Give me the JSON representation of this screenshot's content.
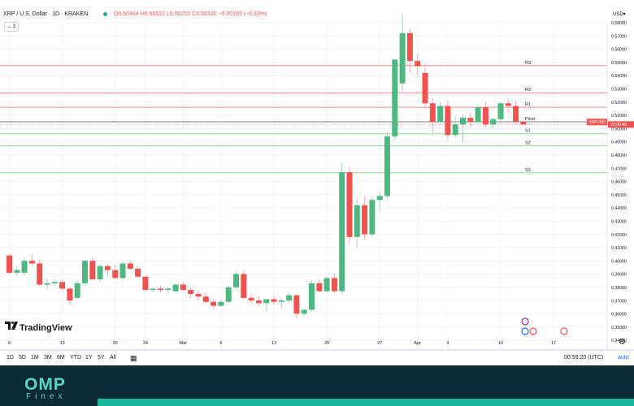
{
  "header": {
    "title": "XRP / U.S. Dollar · 1D · KRAKEN",
    "ohlc": "O0.50484 H0.50522 L0.50253 C0.50330 −0.00165 (−0.33%)",
    "indicator_count": "3",
    "currency": "USD▾"
  },
  "footer": {
    "tv_label": "TradingView",
    "clock": "00:59:20 (UTC)",
    "auto_label": "auto",
    "ranges": [
      "1D",
      "5D",
      "1M",
      "3M",
      "6M",
      "YTD",
      "1Y",
      "5Y",
      "All"
    ],
    "brand_top": "OMP",
    "brand_bottom": "Finex"
  },
  "colors": {
    "up": "#4fb881",
    "down": "#ef5350",
    "resistance": "#f28b8b",
    "support": "#8fdc8f",
    "pivot": "#787b86",
    "brand": "#5bd6c6"
  },
  "chart_data": {
    "type": "candlestick",
    "symbol_label": "XRPUSD",
    "last_price_label": "23:00:40",
    "ylim": [
      0.336,
      0.589
    ],
    "price_ticks": [
      "0.58000",
      "0.57000",
      "0.56000",
      "0.55000",
      "0.54000",
      "0.53000",
      "0.52000",
      "0.51000",
      "0.50000",
      "0.49000",
      "0.48000",
      "0.47000",
      "0.46000",
      "0.45000",
      "0.44000",
      "0.43000",
      "0.42000",
      "0.41000",
      "0.40000",
      "0.39000",
      "0.38000",
      "0.37000",
      "0.36000",
      "0.35000",
      "0.34000"
    ],
    "date_ticks": [
      {
        "label": "6",
        "i": 0
      },
      {
        "label": "13",
        "i": 7
      },
      {
        "label": "20",
        "i": 14
      },
      {
        "label": "24",
        "i": 18
      },
      {
        "label": "Mar",
        "i": 23
      },
      {
        "label": "6",
        "i": 28
      },
      {
        "label": "13",
        "i": 35
      },
      {
        "label": "20",
        "i": 42
      },
      {
        "label": "27",
        "i": 49
      },
      {
        "label": "Apr",
        "i": 54
      },
      {
        "label": "3",
        "i": 58
      },
      {
        "label": "10",
        "i": 65
      },
      {
        "label": "17",
        "i": 72
      }
    ],
    "pivots": [
      {
        "label": "R3",
        "value": 0.5475,
        "kind": "resistance"
      },
      {
        "label": "R2",
        "value": 0.527,
        "kind": "resistance"
      },
      {
        "label": "R1",
        "value": 0.516,
        "kind": "resistance"
      },
      {
        "label": "Pivot",
        "value": 0.505,
        "kind": "pivot"
      },
      {
        "label": "S1",
        "value": 0.496,
        "kind": "support"
      },
      {
        "label": "S2",
        "value": 0.487,
        "kind": "support"
      },
      {
        "label": "S3",
        "value": 0.4665,
        "kind": "support"
      }
    ],
    "candles": [
      {
        "o": 0.404,
        "h": 0.405,
        "l": 0.39,
        "c": 0.391
      },
      {
        "o": 0.391,
        "h": 0.396,
        "l": 0.389,
        "c": 0.393
      },
      {
        "o": 0.391,
        "h": 0.402,
        "l": 0.389,
        "c": 0.4
      },
      {
        "o": 0.4,
        "h": 0.405,
        "l": 0.396,
        "c": 0.398
      },
      {
        "o": 0.398,
        "h": 0.401,
        "l": 0.381,
        "c": 0.382
      },
      {
        "o": 0.382,
        "h": 0.387,
        "l": 0.378,
        "c": 0.383
      },
      {
        "o": 0.383,
        "h": 0.386,
        "l": 0.381,
        "c": 0.384
      },
      {
        "o": 0.384,
        "h": 0.386,
        "l": 0.378,
        "c": 0.379
      },
      {
        "o": 0.379,
        "h": 0.38,
        "l": 0.367,
        "c": 0.37
      },
      {
        "o": 0.372,
        "h": 0.385,
        "l": 0.371,
        "c": 0.383
      },
      {
        "o": 0.383,
        "h": 0.401,
        "l": 0.381,
        "c": 0.4
      },
      {
        "o": 0.4,
        "h": 0.402,
        "l": 0.385,
        "c": 0.386
      },
      {
        "o": 0.386,
        "h": 0.398,
        "l": 0.384,
        "c": 0.396
      },
      {
        "o": 0.396,
        "h": 0.398,
        "l": 0.389,
        "c": 0.393
      },
      {
        "o": 0.393,
        "h": 0.397,
        "l": 0.386,
        "c": 0.387
      },
      {
        "o": 0.387,
        "h": 0.399,
        "l": 0.385,
        "c": 0.398
      },
      {
        "o": 0.398,
        "h": 0.4,
        "l": 0.393,
        "c": 0.394
      },
      {
        "o": 0.394,
        "h": 0.396,
        "l": 0.387,
        "c": 0.388
      },
      {
        "o": 0.388,
        "h": 0.389,
        "l": 0.377,
        "c": 0.378
      },
      {
        "o": 0.378,
        "h": 0.38,
        "l": 0.376,
        "c": 0.379
      },
      {
        "o": 0.379,
        "h": 0.381,
        "l": 0.376,
        "c": 0.378
      },
      {
        "o": 0.378,
        "h": 0.38,
        "l": 0.375,
        "c": 0.379
      },
      {
        "o": 0.377,
        "h": 0.383,
        "l": 0.376,
        "c": 0.382
      },
      {
        "o": 0.382,
        "h": 0.384,
        "l": 0.377,
        "c": 0.378
      },
      {
        "o": 0.378,
        "h": 0.38,
        "l": 0.372,
        "c": 0.375
      },
      {
        "o": 0.375,
        "h": 0.378,
        "l": 0.37,
        "c": 0.373
      },
      {
        "o": 0.373,
        "h": 0.376,
        "l": 0.368,
        "c": 0.369
      },
      {
        "o": 0.369,
        "h": 0.371,
        "l": 0.364,
        "c": 0.366
      },
      {
        "o": 0.366,
        "h": 0.371,
        "l": 0.365,
        "c": 0.369
      },
      {
        "o": 0.369,
        "h": 0.381,
        "l": 0.368,
        "c": 0.38
      },
      {
        "o": 0.38,
        "h": 0.392,
        "l": 0.379,
        "c": 0.39
      },
      {
        "o": 0.39,
        "h": 0.393,
        "l": 0.371,
        "c": 0.372
      },
      {
        "o": 0.372,
        "h": 0.375,
        "l": 0.368,
        "c": 0.37
      },
      {
        "o": 0.37,
        "h": 0.373,
        "l": 0.366,
        "c": 0.368
      },
      {
        "o": 0.368,
        "h": 0.371,
        "l": 0.362,
        "c": 0.371
      },
      {
        "o": 0.371,
        "h": 0.374,
        "l": 0.367,
        "c": 0.369
      },
      {
        "o": 0.369,
        "h": 0.372,
        "l": 0.364,
        "c": 0.37
      },
      {
        "o": 0.37,
        "h": 0.376,
        "l": 0.368,
        "c": 0.374
      },
      {
        "o": 0.374,
        "h": 0.375,
        "l": 0.357,
        "c": 0.36
      },
      {
        "o": 0.36,
        "h": 0.364,
        "l": 0.358,
        "c": 0.363
      },
      {
        "o": 0.363,
        "h": 0.385,
        "l": 0.362,
        "c": 0.383
      },
      {
        "o": 0.383,
        "h": 0.386,
        "l": 0.376,
        "c": 0.377
      },
      {
        "o": 0.377,
        "h": 0.388,
        "l": 0.376,
        "c": 0.387
      },
      {
        "o": 0.387,
        "h": 0.391,
        "l": 0.376,
        "c": 0.377
      },
      {
        "o": 0.377,
        "h": 0.474,
        "l": 0.375,
        "c": 0.467
      },
      {
        "o": 0.467,
        "h": 0.471,
        "l": 0.413,
        "c": 0.418
      },
      {
        "o": 0.418,
        "h": 0.447,
        "l": 0.41,
        "c": 0.442
      },
      {
        "o": 0.442,
        "h": 0.449,
        "l": 0.416,
        "c": 0.42
      },
      {
        "o": 0.42,
        "h": 0.448,
        "l": 0.418,
        "c": 0.446
      },
      {
        "o": 0.446,
        "h": 0.452,
        "l": 0.438,
        "c": 0.449
      },
      {
        "o": 0.449,
        "h": 0.497,
        "l": 0.447,
        "c": 0.494
      },
      {
        "o": 0.494,
        "h": 0.553,
        "l": 0.491,
        "c": 0.552
      },
      {
        "o": 0.534,
        "h": 0.587,
        "l": 0.528,
        "c": 0.572
      },
      {
        "o": 0.572,
        "h": 0.575,
        "l": 0.542,
        "c": 0.551
      },
      {
        "o": 0.551,
        "h": 0.556,
        "l": 0.54,
        "c": 0.547
      },
      {
        "o": 0.542,
        "h": 0.549,
        "l": 0.515,
        "c": 0.519
      },
      {
        "o": 0.519,
        "h": 0.523,
        "l": 0.497,
        "c": 0.505
      },
      {
        "o": 0.505,
        "h": 0.52,
        "l": 0.503,
        "c": 0.517
      },
      {
        "o": 0.517,
        "h": 0.521,
        "l": 0.491,
        "c": 0.495
      },
      {
        "o": 0.495,
        "h": 0.509,
        "l": 0.493,
        "c": 0.503
      },
      {
        "o": 0.503,
        "h": 0.51,
        "l": 0.49,
        "c": 0.508
      },
      {
        "o": 0.508,
        "h": 0.511,
        "l": 0.501,
        "c": 0.505
      },
      {
        "o": 0.505,
        "h": 0.518,
        "l": 0.504,
        "c": 0.516
      },
      {
        "o": 0.516,
        "h": 0.52,
        "l": 0.501,
        "c": 0.503
      },
      {
        "o": 0.503,
        "h": 0.508,
        "l": 0.5,
        "c": 0.507
      },
      {
        "o": 0.507,
        "h": 0.52,
        "l": 0.505,
        "c": 0.519
      },
      {
        "o": 0.519,
        "h": 0.522,
        "l": 0.512,
        "c": 0.517
      },
      {
        "o": 0.517,
        "h": 0.521,
        "l": 0.503,
        "c": 0.505
      },
      {
        "o": 0.505,
        "h": 0.506,
        "l": 0.502,
        "c": 0.503
      }
    ],
    "grid": true,
    "events_row": true
  }
}
